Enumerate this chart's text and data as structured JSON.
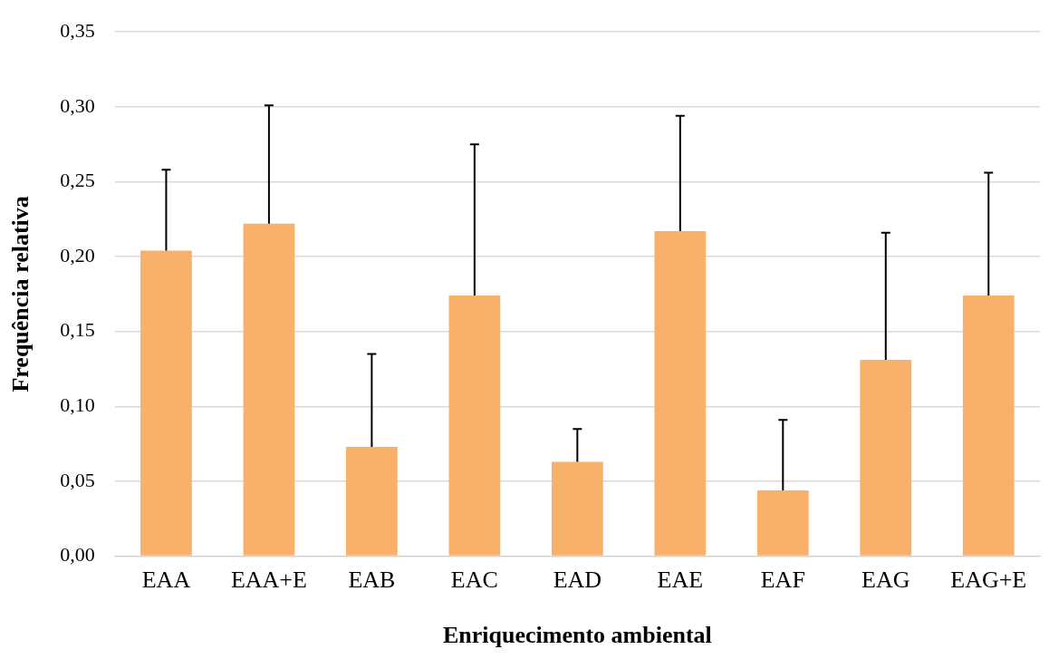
{
  "chart_data": {
    "type": "bar",
    "xlabel": "Enriquecimento ambiental",
    "ylabel": "Frequência relativa",
    "categories": [
      "EAA",
      "EAA+E",
      "EAB",
      "EAC",
      "EAD",
      "EAE",
      "EAF",
      "EAG",
      "EAG+E"
    ],
    "values": [
      0.204,
      0.222,
      0.073,
      0.174,
      0.063,
      0.217,
      0.044,
      0.131,
      0.174
    ],
    "errors": [
      [
        0.204,
        0.258
      ],
      [
        0.222,
        0.301
      ],
      [
        0.073,
        0.135
      ],
      [
        0.174,
        0.275
      ],
      [
        0.063,
        0.085
      ],
      [
        0.217,
        0.294
      ],
      [
        0.044,
        0.091
      ],
      [
        0.131,
        0.216
      ],
      [
        0.174,
        0.256
      ]
    ],
    "color": "#f8b06a",
    "ylim": [
      0,
      0.35
    ],
    "yticks": [
      {
        "value": 0,
        "label": "0,00"
      },
      {
        "value": 0.05,
        "label": "0,05"
      },
      {
        "value": 0.1,
        "label": "0,10"
      },
      {
        "value": 0.15,
        "label": "0,15"
      },
      {
        "value": 0.2,
        "label": "0,20"
      },
      {
        "value": 0.25,
        "label": "0,25"
      },
      {
        "value": 0.3,
        "label": "0,30"
      },
      {
        "value": 0.35,
        "label": "0,35"
      }
    ],
    "grid": "y",
    "legend": false
  }
}
